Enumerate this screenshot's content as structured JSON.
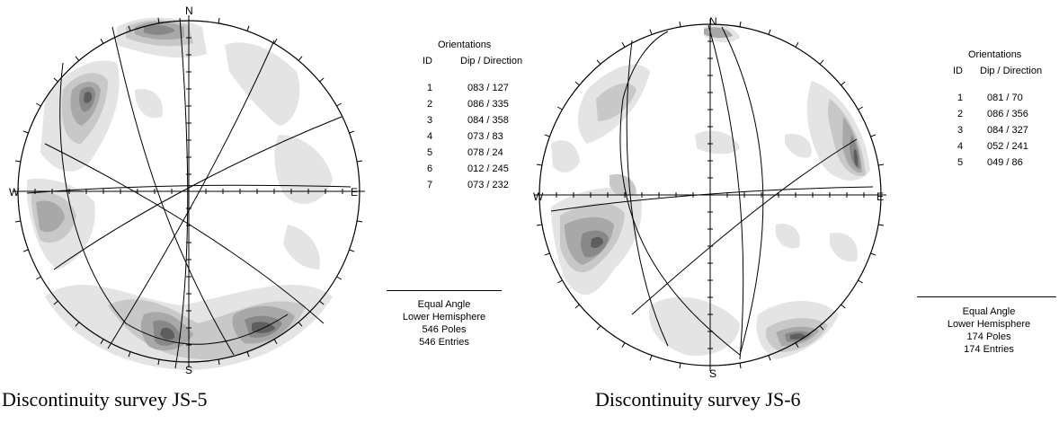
{
  "panels": [
    {
      "caption": "Discontinuity survey JS-5",
      "directions": {
        "n": "N",
        "s": "S",
        "e": "E",
        "w": "W"
      },
      "orientations": {
        "title": "Orientations",
        "col_id": "ID",
        "col_dip": "Dip / Direction",
        "rows": [
          {
            "id": "1",
            "dip": "083 / 127"
          },
          {
            "id": "2",
            "dip": "086 / 335"
          },
          {
            "id": "3",
            "dip": "084 / 358"
          },
          {
            "id": "4",
            "dip": "073 / 83"
          },
          {
            "id": "5",
            "dip": "078 / 24"
          },
          {
            "id": "6",
            "dip": "012 / 245"
          },
          {
            "id": "7",
            "dip": "073 / 232"
          }
        ]
      },
      "legend": {
        "projection": "Equal Angle",
        "hemisphere": "Lower Hemisphere",
        "poles": "546 Poles",
        "entries": "546 Entries"
      }
    },
    {
      "caption": "Discontinuity survey JS-6",
      "directions": {
        "n": "N",
        "s": "S",
        "e": "E",
        "w": "W"
      },
      "orientations": {
        "title": "Orientations",
        "col_id": "ID",
        "col_dip": "Dip / Direction",
        "rows": [
          {
            "id": "1",
            "dip": "081 / 70"
          },
          {
            "id": "2",
            "dip": "086 / 356"
          },
          {
            "id": "3",
            "dip": "084 / 327"
          },
          {
            "id": "4",
            "dip": "052 / 241"
          },
          {
            "id": "5",
            "dip": "049 / 86"
          }
        ]
      },
      "legend": {
        "projection": "Equal Angle",
        "hemisphere": "Lower Hemisphere",
        "poles": "174 Poles",
        "entries": "174 Entries"
      }
    }
  ],
  "colors": {
    "contour_1": "#e4e4e4",
    "contour_2": "#c8c8c8",
    "contour_3": "#a8a8a8",
    "contour_4": "#888888",
    "contour_5": "#5e5e5e",
    "outline": "#000000",
    "background": "#ffffff"
  }
}
